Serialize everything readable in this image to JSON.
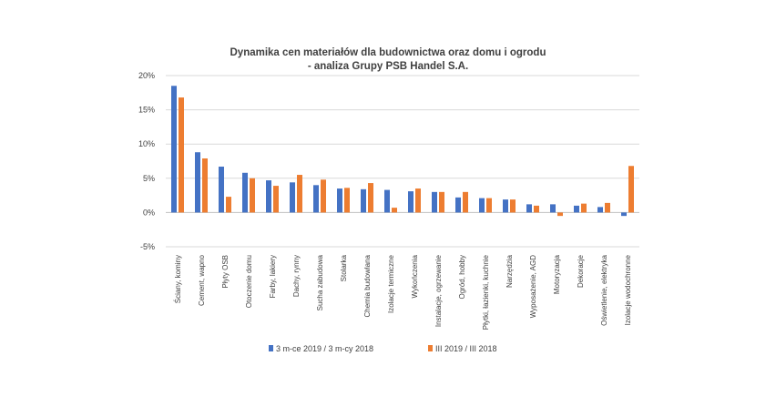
{
  "chart_data": {
    "type": "bar",
    "title": [
      "Dynamika cen materiałów dla budownictwa oraz domu i ogrodu",
      "- analiza Grupy PSB Handel S.A."
    ],
    "categories": [
      "Ściany, kominy",
      "Cement, wapno",
      "Płyty OSB",
      "Otoczenie domu",
      "Farby, lakiery",
      "Dachy, rynny",
      "Sucha zabudowa",
      "Stolarka",
      "Chemia budowlana",
      "Izolacje termiczne",
      "Wykończenia",
      "Instalacje, ogrzewanie",
      "Ogród, hobby",
      "Płytki, łazienki, kuchnie",
      "Narzędzia",
      "Wyposażenie, AGD",
      "Motoryzacja",
      "Dekoracje",
      "Oświetlenie, elektryka",
      "Izolacje wodochronne"
    ],
    "series": [
      {
        "name": "3 m-ce 2019 / 3 m-cy 2018",
        "color": "#4472C4",
        "values": [
          18.5,
          8.8,
          6.7,
          5.8,
          4.7,
          4.4,
          4.0,
          3.5,
          3.4,
          3.3,
          3.1,
          3.0,
          2.2,
          2.1,
          1.9,
          1.2,
          1.2,
          1.0,
          0.8,
          -0.5
        ]
      },
      {
        "name": "III 2019 / III 2018",
        "color": "#ED7D31",
        "values": [
          16.8,
          7.9,
          2.3,
          5.0,
          3.9,
          5.5,
          4.8,
          3.6,
          4.3,
          0.7,
          3.5,
          3.0,
          3.0,
          2.1,
          1.9,
          1.0,
          -0.5,
          1.3,
          1.4,
          6.8
        ]
      }
    ],
    "y_ticks": [
      "20%",
      "15%",
      "10%",
      "5%",
      "0%",
      "-5%"
    ],
    "ylim": [
      -5,
      20
    ],
    "grid": true,
    "legend_position": "bottom"
  }
}
